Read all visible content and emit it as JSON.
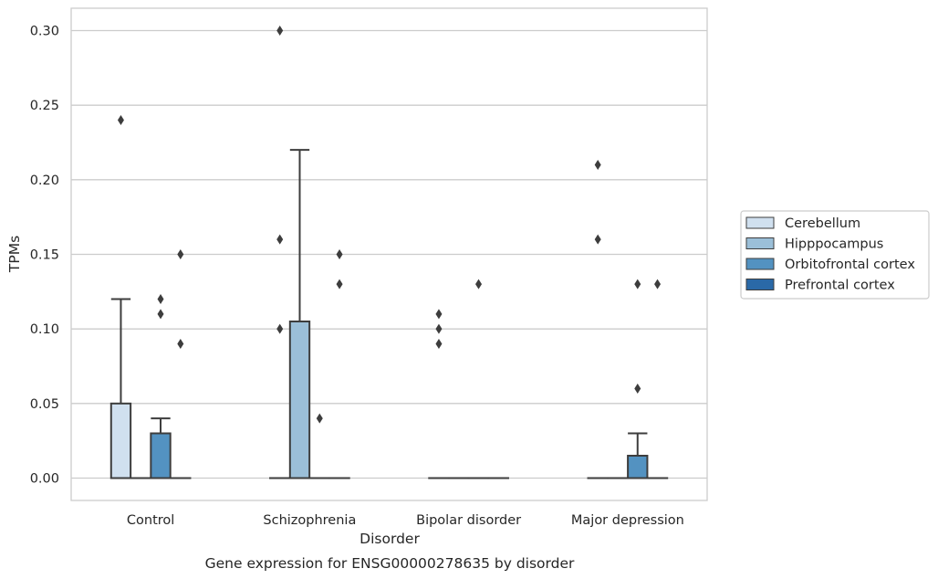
{
  "chart_data": {
    "type": "box",
    "caption": "Gene expression for ENSG00000278635 by disorder",
    "xlabel": "Disorder",
    "ylabel": "TPMs",
    "categories": [
      "Control",
      "Schizophrenia",
      "Bipolar disorder",
      "Major depression"
    ],
    "ylim": [
      -0.015,
      0.315
    ],
    "yticks": [
      0.0,
      0.05,
      0.1,
      0.15,
      0.2,
      0.25,
      0.3
    ],
    "ytick_labels": [
      "0.00",
      "0.05",
      "0.10",
      "0.15",
      "0.20",
      "0.25",
      "0.30"
    ],
    "grid": "horizontal",
    "legend": "right, outside",
    "series": [
      {
        "name": "Cerebellum",
        "color": "#d0e0ef",
        "boxes": [
          {
            "q1": 0.0,
            "median": 0.0,
            "q3": 0.05,
            "whislo": 0.0,
            "whishi": 0.12,
            "fliers": [
              0.24
            ]
          },
          {
            "q1": 0.0,
            "median": 0.0,
            "q3": 0.0,
            "whislo": 0.0,
            "whishi": 0.0,
            "fliers": [
              0.3,
              0.16,
              0.1
            ]
          },
          {
            "q1": 0.0,
            "median": 0.0,
            "q3": 0.0,
            "whislo": 0.0,
            "whishi": 0.0,
            "fliers": [
              0.11,
              0.1,
              0.09
            ]
          },
          {
            "q1": 0.0,
            "median": 0.0,
            "q3": 0.0,
            "whislo": 0.0,
            "whishi": 0.0,
            "fliers": [
              0.21,
              0.16
            ]
          }
        ]
      },
      {
        "name": "Hipppocampus",
        "color": "#9bbfd8",
        "boxes": [
          {
            "q1": 0.0,
            "median": 0.0,
            "q3": 0.0,
            "whislo": 0.0,
            "whishi": 0.0,
            "fliers": []
          },
          {
            "q1": 0.0,
            "median": 0.0,
            "q3": 0.105,
            "whislo": 0.0,
            "whishi": 0.22,
            "fliers": []
          },
          {
            "q1": 0.0,
            "median": 0.0,
            "q3": 0.0,
            "whislo": 0.0,
            "whishi": 0.0,
            "fliers": []
          },
          {
            "q1": 0.0,
            "median": 0.0,
            "q3": 0.0,
            "whislo": 0.0,
            "whishi": 0.0,
            "fliers": []
          }
        ]
      },
      {
        "name": "Orbitofrontal cortex",
        "color": "#5392c1",
        "boxes": [
          {
            "q1": 0.0,
            "median": 0.0,
            "q3": 0.03,
            "whislo": 0.0,
            "whishi": 0.04,
            "fliers": [
              0.12,
              0.11
            ]
          },
          {
            "q1": 0.0,
            "median": 0.0,
            "q3": 0.0,
            "whislo": 0.0,
            "whishi": 0.0,
            "fliers": [
              0.04
            ]
          },
          {
            "q1": 0.0,
            "median": 0.0,
            "q3": 0.0,
            "whislo": 0.0,
            "whishi": 0.0,
            "fliers": [
              0.13
            ]
          },
          {
            "q1": 0.0,
            "median": 0.0,
            "q3": 0.015,
            "whislo": 0.0,
            "whishi": 0.03,
            "fliers": [
              0.13,
              0.06
            ]
          }
        ]
      },
      {
        "name": "Prefrontal cortex",
        "color": "#2a69a7",
        "boxes": [
          {
            "q1": 0.0,
            "median": 0.0,
            "q3": 0.0,
            "whislo": 0.0,
            "whishi": 0.0,
            "fliers": [
              0.15,
              0.09
            ]
          },
          {
            "q1": 0.0,
            "median": 0.0,
            "q3": 0.0,
            "whislo": 0.0,
            "whishi": 0.0,
            "fliers": [
              0.15,
              0.13
            ]
          },
          {
            "q1": 0.0,
            "median": 0.0,
            "q3": 0.0,
            "whislo": 0.0,
            "whishi": 0.0,
            "fliers": []
          },
          {
            "q1": 0.0,
            "median": 0.0,
            "q3": 0.0,
            "whislo": 0.0,
            "whishi": 0.0,
            "fliers": [
              0.13
            ]
          }
        ]
      }
    ]
  }
}
